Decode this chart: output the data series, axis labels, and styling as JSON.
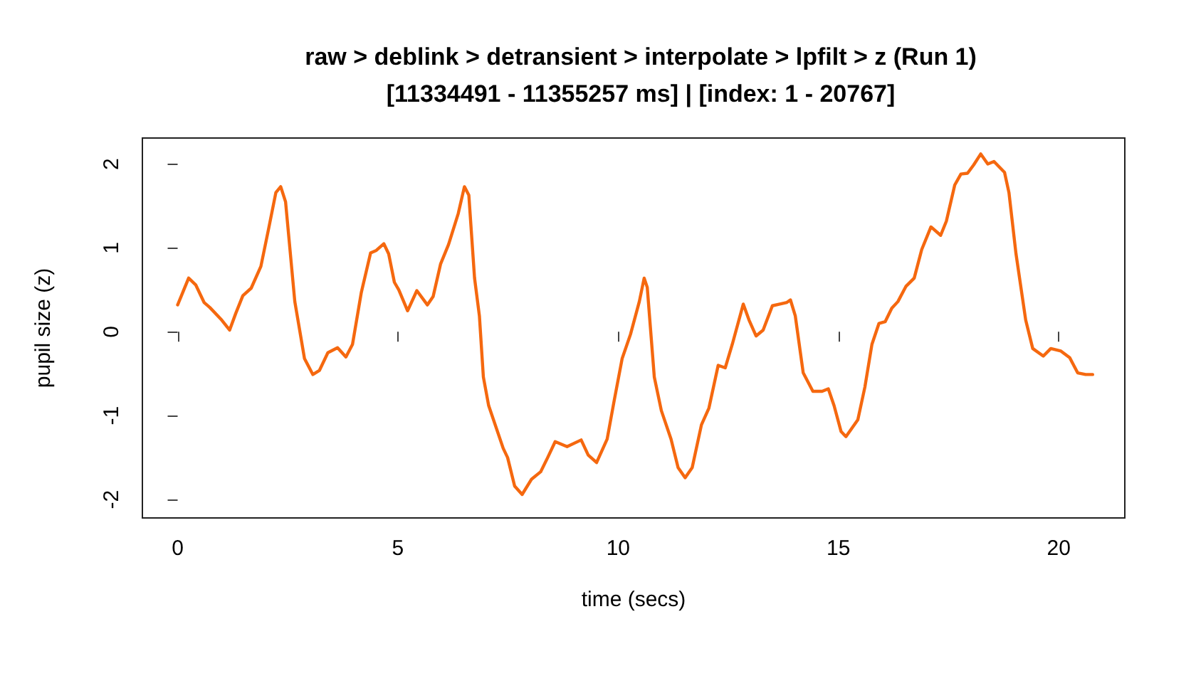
{
  "chart_data": {
    "type": "line",
    "title": "raw > deblink > detransient > interpolate > lpfilt > z (Run 1)\n[11334491 - 11355257 ms] | [index: 1 - 20767]",
    "xlabel": "time (secs)",
    "ylabel": "pupil size (z)",
    "xlim": [
      -0.8,
      21.5
    ],
    "ylim": [
      -2.22,
      2.31
    ],
    "xticks": [
      0,
      5,
      10,
      15,
      20
    ],
    "yticks": [
      -2,
      -1,
      0,
      1,
      2
    ],
    "marker": "none",
    "line_style": "solid",
    "series": [
      {
        "color": "#f5680f",
        "x": [
          0,
          0.25,
          0.41,
          0.6,
          0.73,
          1.0,
          1.18,
          1.32,
          1.48,
          1.67,
          1.89,
          2.07,
          2.23,
          2.34,
          2.45,
          2.66,
          2.88,
          3.07,
          3.22,
          3.41,
          3.63,
          3.82,
          3.97,
          4.17,
          4.38,
          4.51,
          4.68,
          4.79,
          4.92,
          5.02,
          5.22,
          5.43,
          5.67,
          5.8,
          5.97,
          6.15,
          6.37,
          6.51,
          6.61,
          6.74,
          6.85,
          6.94,
          7.06,
          7.39,
          7.49,
          7.65,
          7.82,
          8.03,
          8.24,
          8.4,
          8.57,
          8.84,
          9.16,
          9.32,
          9.51,
          9.75,
          9.91,
          10.09,
          10.28,
          10.48,
          10.59,
          10.66,
          10.82,
          10.98,
          11.2,
          11.36,
          11.52,
          11.68,
          11.89,
          12.06,
          12.27,
          12.43,
          12.59,
          12.84,
          12.97,
          13.13,
          13.29,
          13.5,
          13.67,
          13.83,
          13.91,
          14.02,
          14.2,
          14.42,
          14.63,
          14.77,
          14.9,
          15.06,
          15.17,
          15.44,
          15.6,
          15.76,
          15.92,
          16.06,
          16.21,
          16.35,
          16.53,
          16.72,
          16.89,
          17.1,
          17.32,
          17.45,
          17.64,
          17.78,
          17.93,
          18.07,
          18.23,
          18.39,
          18.53,
          18.77,
          18.87,
          19.03,
          19.25,
          19.41,
          19.65,
          19.82,
          20.05,
          20.25,
          20.43,
          20.61,
          20.77
        ],
        "values": [
          0.32,
          0.64,
          0.56,
          0.35,
          0.29,
          0.14,
          0.02,
          0.22,
          0.43,
          0.52,
          0.78,
          1.24,
          1.66,
          1.73,
          1.55,
          0.36,
          -0.32,
          -0.51,
          -0.46,
          -0.25,
          -0.19,
          -0.3,
          -0.15,
          0.47,
          0.94,
          0.97,
          1.05,
          0.93,
          0.59,
          0.5,
          0.25,
          0.49,
          0.32,
          0.42,
          0.81,
          1.04,
          1.41,
          1.73,
          1.63,
          0.64,
          0.19,
          -0.54,
          -0.88,
          -1.39,
          -1.5,
          -1.84,
          -1.94,
          -1.76,
          -1.67,
          -1.5,
          -1.31,
          -1.37,
          -1.29,
          -1.47,
          -1.56,
          -1.28,
          -0.82,
          -0.32,
          -0.03,
          0.36,
          0.64,
          0.53,
          -0.54,
          -0.94,
          -1.28,
          -1.62,
          -1.74,
          -1.62,
          -1.11,
          -0.91,
          -0.4,
          -0.43,
          -0.15,
          0.33,
          0.14,
          -0.05,
          0.02,
          0.31,
          0.33,
          0.35,
          0.38,
          0.19,
          -0.49,
          -0.71,
          -0.71,
          -0.68,
          -0.88,
          -1.19,
          -1.25,
          -1.05,
          -0.66,
          -0.15,
          0.1,
          0.12,
          0.28,
          0.36,
          0.54,
          0.64,
          0.98,
          1.25,
          1.15,
          1.32,
          1.75,
          1.88,
          1.89,
          1.99,
          2.12,
          2.0,
          2.03,
          1.9,
          1.66,
          0.93,
          0.14,
          -0.2,
          -0.29,
          -0.2,
          -0.23,
          -0.31,
          -0.49,
          -0.51,
          -0.51
        ]
      }
    ]
  }
}
